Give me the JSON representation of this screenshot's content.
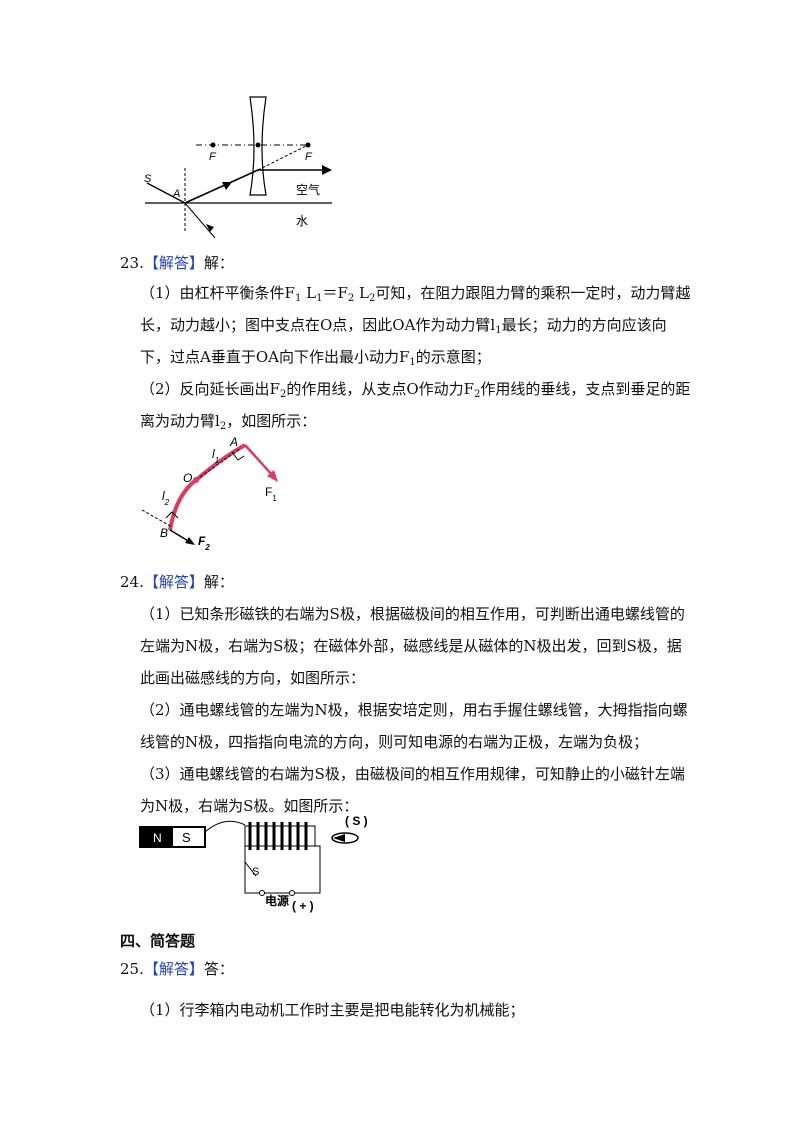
{
  "figure_refraction": {
    "labels": [
      "S",
      "A",
      "F",
      "F",
      "空气",
      "水"
    ]
  },
  "items": [
    {
      "number": "23.",
      "tag": "【解答】",
      "lead": "解：",
      "paragraphs": [
        [
          "（1）由杠杆平衡条件F",
          {
            "sub": "1"
          },
          " L",
          {
            "sub": "1"
          },
          "＝F",
          {
            "sub": "2"
          },
          " L",
          {
            "sub": "2"
          },
          "可知，在阻力跟阻力臂的乘积一定时，动力臂越长，动力越小；图中支点在O点，因此OA作为动力臂l",
          {
            "sub": "1"
          },
          "最长；动力的方向应该向下，过点A垂直于OA向下作出最小动力F",
          {
            "sub": "1"
          },
          "的示意图；"
        ],
        [
          "（2）反向延长画出F",
          {
            "sub": "2"
          },
          "的作用线，从支点O作动力F",
          {
            "sub": "2"
          },
          "作用线的垂线，支点到垂足的距离为动力臂l",
          {
            "sub": "2"
          },
          "，如图所示："
        ]
      ]
    },
    {
      "number": "24.",
      "tag": "【解答】",
      "lead": "解：",
      "paragraphs": [
        [
          "（1）已知条形磁铁的右端为S极，根据磁极间的相互作用，可判断出通电螺线管的左端为N极，右端为S极；在磁体外部，磁感线是从磁体的N极出发，回到S极，据此画出磁感线的方向，如图所示："
        ],
        [
          "（2）通电螺线管的左端为N极，根据安培定则，用右手握住螺线管，大拇指指向螺线管的N极，四指指向电流的方向，则可知电源的右端为正极，左端为负极；"
        ],
        [
          "（3）通电螺线管的右端为S极，由磁极间的相互作用规律，可知静止的小磁针左端为N极，右端为S极。如图所示："
        ]
      ]
    },
    {
      "number": "25.",
      "tag": "【解答】",
      "lead": "答：",
      "paragraphs": [
        [
          "（1）行李箱内电动机工作时主要是把电能转化为机械能；"
        ]
      ]
    }
  ],
  "figure_lever": {
    "labels": [
      [
        "A"
      ],
      [
        "l",
        {
          "sub": "1"
        }
      ],
      [
        "O"
      ],
      [
        "F",
        {
          "sub": "1"
        }
      ],
      [
        "l",
        {
          "sub": "2"
        }
      ],
      [
        "B"
      ],
      [
        "F",
        {
          "sub": "2"
        }
      ]
    ]
  },
  "figure_solenoid": {
    "labels": [
      "N",
      "S",
      "( S )",
      "S",
      "电源",
      "( + )"
    ]
  },
  "section": "四、简答题"
}
